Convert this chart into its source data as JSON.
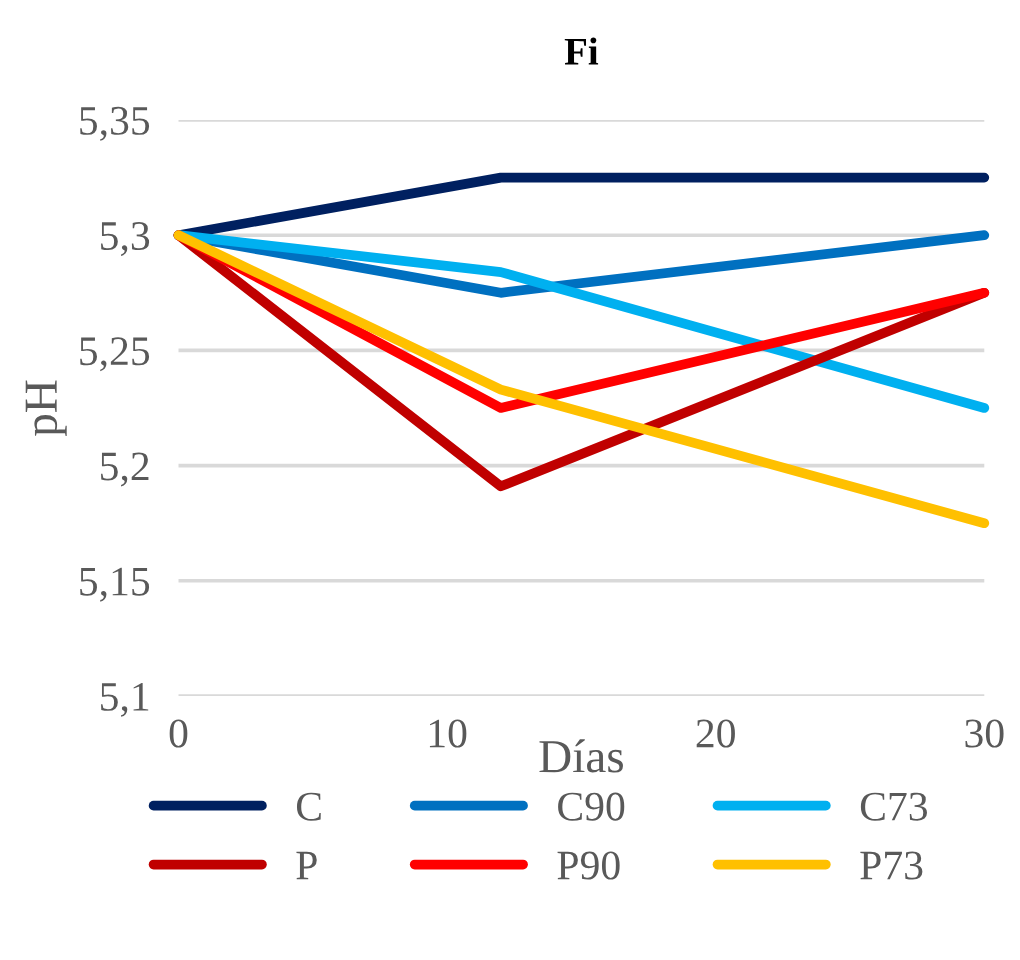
{
  "chart_data": {
    "type": "line",
    "title": "Fi",
    "xlabel": "Días",
    "ylabel": "pH",
    "x": [
      0,
      12,
      30
    ],
    "series": [
      {
        "name": "C",
        "color": "#002060",
        "values": [
          5.3,
          5.325,
          5.325
        ]
      },
      {
        "name": "C90",
        "color": "#0070c0",
        "values": [
          5.3,
          5.275,
          5.3
        ]
      },
      {
        "name": "C73",
        "color": "#00b0f0",
        "values": [
          5.3,
          5.284,
          5.225
        ]
      },
      {
        "name": "P",
        "color": "#c00000",
        "values": [
          5.3,
          5.191,
          5.275
        ]
      },
      {
        "name": "P90",
        "color": "#ff0000",
        "values": [
          5.3,
          5.225,
          5.275
        ]
      },
      {
        "name": "P73",
        "color": "#ffc000",
        "values": [
          5.3,
          5.233,
          5.175
        ]
      }
    ],
    "xlim": [
      0,
      30
    ],
    "xticks": [
      0,
      10,
      20,
      30
    ],
    "ylim": [
      5.1,
      5.35
    ],
    "yticks": [
      {
        "value": 5.1,
        "label": "5,1"
      },
      {
        "value": 5.15,
        "label": "5,15"
      },
      {
        "value": 5.2,
        "label": "5,2"
      },
      {
        "value": 5.25,
        "label": "5,25"
      },
      {
        "value": 5.3,
        "label": "5,3"
      },
      {
        "value": 5.35,
        "label": "5,35"
      }
    ],
    "grid": "y",
    "legend": "bottom",
    "marker": "none",
    "line_style": "solid"
  }
}
